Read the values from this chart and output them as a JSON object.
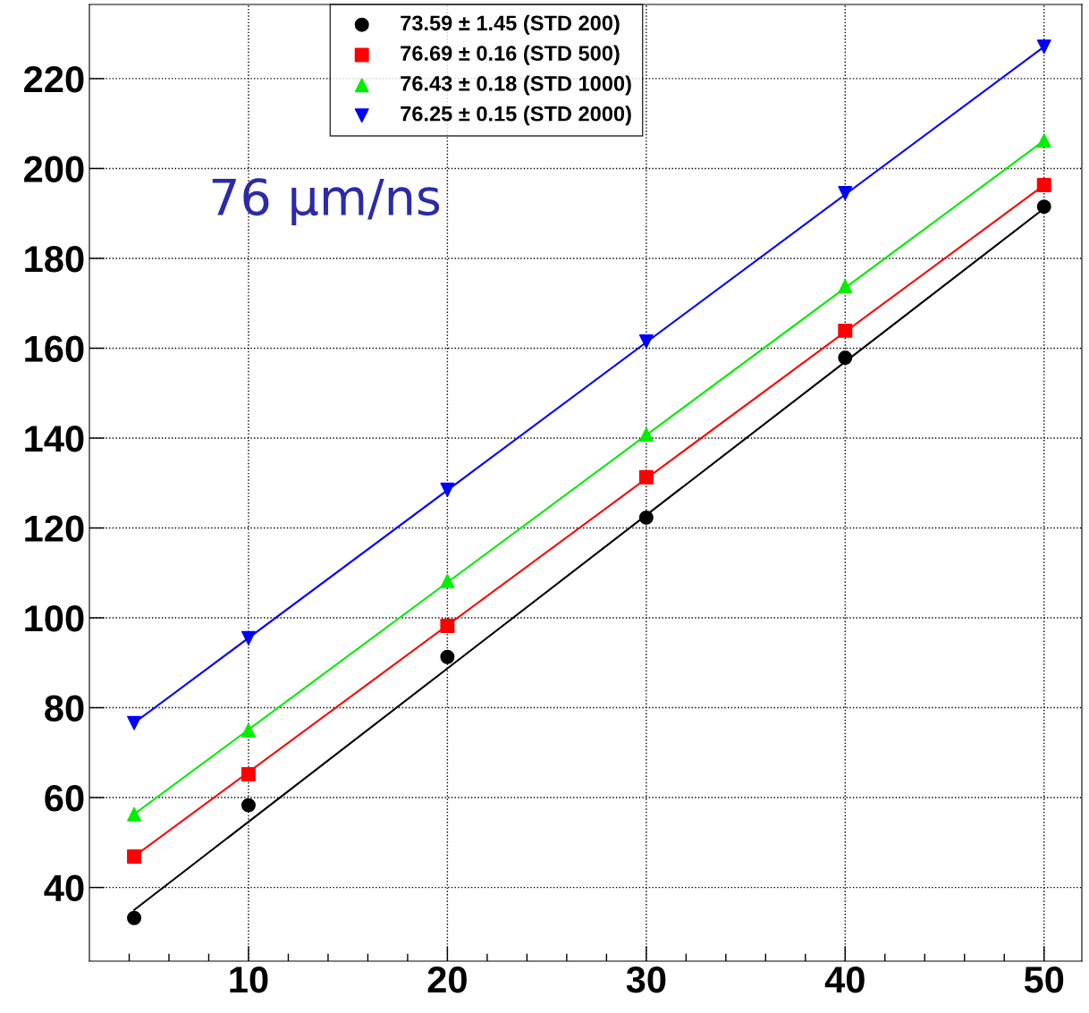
{
  "chart_data": {
    "type": "scatter",
    "xlim": [
      2.0,
      51.9
    ],
    "ylim": [
      23.6,
      236.5
    ],
    "xticks": [
      {
        "value": 4,
        "label": null
      },
      {
        "value": 6,
        "label": null
      },
      {
        "value": 8,
        "label": null
      },
      10,
      {
        "value": 12,
        "label": null
      },
      {
        "value": 14,
        "label": null
      },
      {
        "value": 16,
        "label": null
      },
      {
        "value": 18,
        "label": null
      },
      20,
      {
        "value": 22,
        "label": null
      },
      {
        "value": 24,
        "label": null
      },
      {
        "value": 26,
        "label": null
      },
      {
        "value": 28,
        "label": null
      },
      30,
      {
        "value": 32,
        "label": null
      },
      {
        "value": 34,
        "label": null
      },
      {
        "value": 36,
        "label": null
      },
      {
        "value": 38,
        "label": null
      },
      40,
      {
        "value": 42,
        "label": null
      },
      {
        "value": 44,
        "label": null
      },
      {
        "value": 46,
        "label": null
      },
      {
        "value": 48,
        "label": null
      },
      50
    ],
    "yticks": [
      40,
      60,
      80,
      100,
      120,
      140,
      160,
      180,
      200,
      220
    ],
    "grid": true,
    "legend": "top",
    "annotations": [
      "76 μm/ns"
    ],
    "series": [
      {
        "name": "73.59 ± 1.45 (STD 200)",
        "color": "#000000",
        "marker": "circle",
        "x": [
          4.25,
          10,
          20,
          30,
          40,
          50
        ],
        "values": [
          33.2,
          58.3,
          91.3,
          122.3,
          157.9,
          191.5
        ]
      },
      {
        "name": "76.69 ± 0.16 (STD 500)",
        "color": "#ff0000",
        "marker": "square",
        "x": [
          4.25,
          10,
          20,
          30,
          40,
          50
        ],
        "values": [
          46.9,
          65.2,
          98.2,
          131.3,
          163.9,
          196.3
        ]
      },
      {
        "name": "76.43 ± 0.18 (STD 1000)",
        "color": "#00ee00",
        "marker": "triangle",
        "x": [
          4.25,
          10,
          20,
          30,
          40,
          50
        ],
        "values": [
          56.3,
          75.0,
          108.2,
          140.8,
          173.8,
          206.2
        ]
      },
      {
        "name": "76.25 ± 0.15 (STD 2000)",
        "color": "#0000ff",
        "marker": "triangle_down",
        "x": [
          4.25,
          10,
          20,
          30,
          40,
          50
        ],
        "values": [
          76.6,
          95.5,
          128.5,
          161.5,
          194.5,
          227.1
        ]
      },
      {
        "type": "line",
        "marker": "none",
        "color": "#000000",
        "x": [
          4.25,
          50
        ],
        "values": [
          35.0,
          191.1
        ]
      },
      {
        "type": "line",
        "marker": "none",
        "color": "#ff0000",
        "x": [
          4.25,
          50
        ],
        "values": [
          46.9,
          196.3
        ]
      },
      {
        "type": "line",
        "marker": "none",
        "color": "#00ee00",
        "x": [
          4.25,
          50
        ],
        "values": [
          56.3,
          206.2
        ]
      },
      {
        "type": "line",
        "marker": "none",
        "color": "#0000ff",
        "x": [
          4.25,
          50
        ],
        "values": [
          76.6,
          227.1
        ]
      }
    ]
  }
}
